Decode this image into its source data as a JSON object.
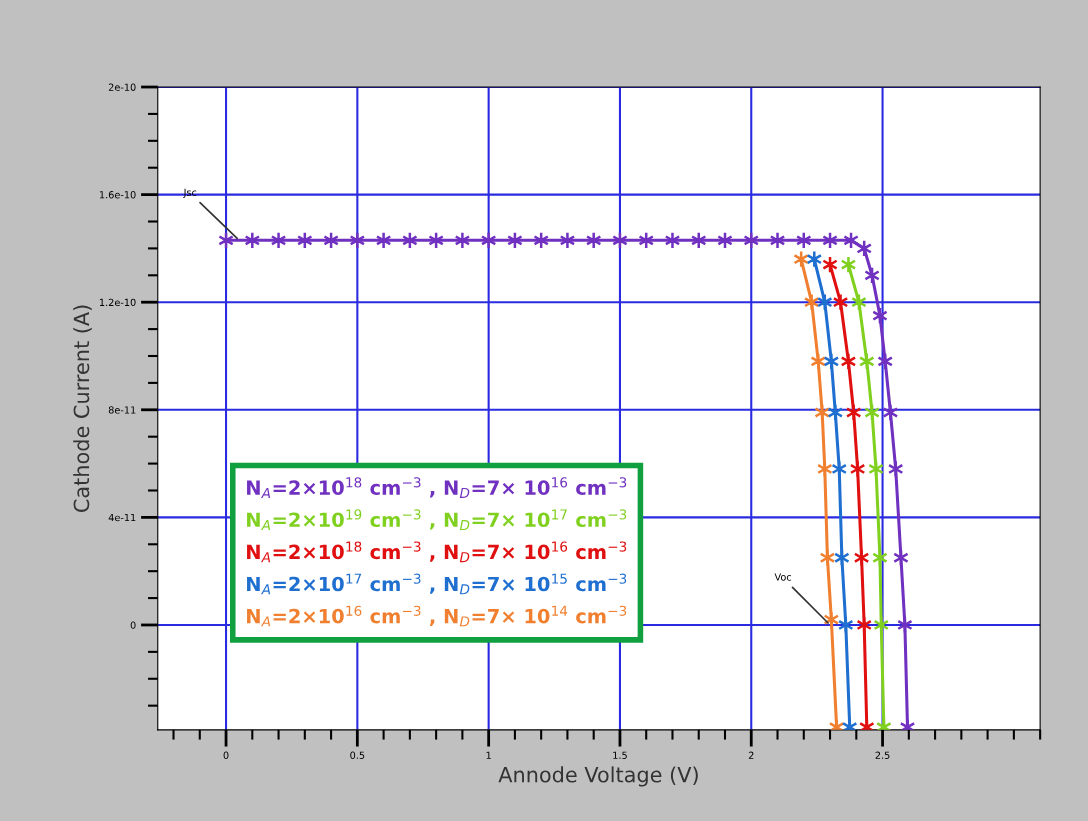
{
  "chart_data": {
    "type": "line",
    "xlabel": "Annode Voltage (V)",
    "ylabel": "Cathode Current (A)",
    "xlim": [
      -0.26,
      3.1
    ],
    "xticks": [
      0,
      0.5,
      1,
      1.5,
      2,
      2.5
    ],
    "ylim": [
      -3.9e-11,
      2e-10
    ],
    "yticks": [
      0,
      4e-11,
      8e-11,
      1.2e-10,
      1.6e-10,
      2e-10
    ],
    "grid": true,
    "marker": "cross",
    "line_style": "solid",
    "annotations": [
      {
        "text": "Jsc",
        "x": 0.05,
        "y": 1.43e-10
      },
      {
        "text": "Voc",
        "x": 2.3,
        "y": 0
      }
    ],
    "series": [
      {
        "name": "N$_{A}$=2×10$^{18}$ cm$^{−3}$ , N$_{D}$=7× 10$^{16}$ cm$^{−3}$",
        "color": "#7030c0",
        "x": [
          0,
          0.1,
          0.2,
          0.3,
          0.4,
          0.5,
          0.6,
          0.7,
          0.8,
          0.9,
          1.0,
          1.1,
          1.2,
          1.3,
          1.4,
          1.5,
          1.6,
          1.7,
          1.8,
          1.9,
          2.0,
          2.1,
          2.2,
          2.3,
          2.38,
          2.43,
          2.46,
          2.49,
          2.51,
          2.53,
          2.55,
          2.57,
          2.585,
          2.595
        ],
        "values": [
          1.43e-10,
          1.43e-10,
          1.43e-10,
          1.43e-10,
          1.43e-10,
          1.43e-10,
          1.43e-10,
          1.43e-10,
          1.43e-10,
          1.43e-10,
          1.43e-10,
          1.43e-10,
          1.43e-10,
          1.43e-10,
          1.43e-10,
          1.43e-10,
          1.43e-10,
          1.43e-10,
          1.43e-10,
          1.43e-10,
          1.43e-10,
          1.43e-10,
          1.43e-10,
          1.43e-10,
          1.43e-10,
          1.4e-10,
          1.3e-10,
          1.15e-10,
          9.8e-11,
          7.9e-11,
          5.8e-11,
          2.5e-11,
          0,
          -3.8e-11
        ]
      },
      {
        "name": "N$_{A}$=2×10$^{19}$ cm$^{−3}$ , N$_{D}$=7× 10$^{17}$ cm$^{−3}$",
        "color": "#80d020",
        "x": [
          2.37,
          2.41,
          2.44,
          2.46,
          2.475,
          2.49,
          2.495,
          2.505
        ],
        "values": [
          1.34e-10,
          1.2e-10,
          9.8e-11,
          7.9e-11,
          5.8e-11,
          2.5e-11,
          0,
          -3.8e-11
        ]
      },
      {
        "name": "N$_{A}$=2×10$^{18}$ cm$^{−3}$ , N$_{D}$=7× 10$^{16}$ cm$^{−3}$",
        "color": "#e01010",
        "x": [
          2.3,
          2.34,
          2.37,
          2.39,
          2.405,
          2.42,
          2.43,
          2.44
        ],
        "values": [
          1.34e-10,
          1.2e-10,
          9.8e-11,
          7.9e-11,
          5.8e-11,
          2.5e-11,
          0,
          -3.8e-11
        ]
      },
      {
        "name": "N$_{A}$=2×10$^{17}$ cm$^{−3}$ , N$_{D}$=7× 10$^{15}$ cm$^{−3}$",
        "color": "#1f6fd0",
        "x": [
          2.24,
          2.28,
          2.305,
          2.32,
          2.335,
          2.345,
          2.36,
          2.375
        ],
        "values": [
          1.36e-10,
          1.2e-10,
          9.8e-11,
          7.9e-11,
          5.8e-11,
          2.5e-11,
          0,
          -3.8e-11
        ]
      },
      {
        "name": "N$_{A}$=2×10$^{16}$ cm$^{−3}$ , N$_{D}$=7× 10$^{14}$ cm$^{−3}$",
        "color": "#f08030",
        "x": [
          2.19,
          2.23,
          2.255,
          2.27,
          2.28,
          2.29,
          2.305,
          2.325
        ],
        "values": [
          1.36e-10,
          1.2e-10,
          9.8e-11,
          7.9e-11,
          5.8e-11,
          2.5e-11,
          2e-12,
          -3.8e-11
        ]
      }
    ]
  }
}
